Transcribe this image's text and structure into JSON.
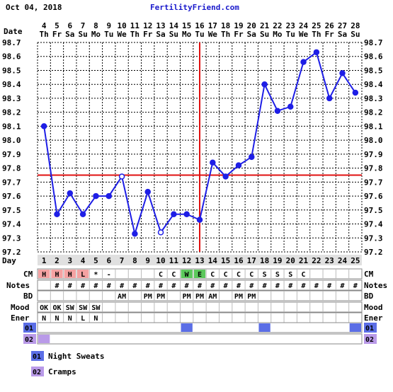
{
  "header": {
    "date": "Oct 04, 2018",
    "site": "FertilityFriend.com"
  },
  "chart_data": {
    "type": "line",
    "row_labels": {
      "date": "Date",
      "day": "Day",
      "cm": "CM",
      "notes": "Notes",
      "bd": "BD",
      "mood": "Mood",
      "energy": "Ener"
    },
    "dates": [
      "4",
      "5",
      "6",
      "7",
      "8",
      "9",
      "10",
      "11",
      "12",
      "13",
      "14",
      "15",
      "16",
      "17",
      "18",
      "19",
      "20",
      "21",
      "22",
      "23",
      "24",
      "25",
      "26",
      "27",
      "28"
    ],
    "weekdays": [
      "Th",
      "Fr",
      "Sa",
      "Su",
      "Mo",
      "Tu",
      "We",
      "Th",
      "Fr",
      "Sa",
      "Su",
      "Mo",
      "Tu",
      "We",
      "Th",
      "Fr",
      "Sa",
      "Su",
      "Mo",
      "Tu",
      "We",
      "Th",
      "Fr",
      "Sa",
      "Su"
    ],
    "days": [
      "1",
      "2",
      "3",
      "4",
      "5",
      "6",
      "7",
      "8",
      "9",
      "10",
      "11",
      "12",
      "13",
      "14",
      "15",
      "16",
      "17",
      "18",
      "19",
      "20",
      "21",
      "22",
      "23",
      "24",
      "25"
    ],
    "y_ticks": [
      "98.7",
      "98.6",
      "98.5",
      "98.4",
      "98.3",
      "98.2",
      "98.1",
      "98.0",
      "97.9",
      "97.8",
      "97.7",
      "97.6",
      "97.5",
      "97.4",
      "97.3",
      "97.2"
    ],
    "ylim": [
      97.2,
      98.7
    ],
    "temperatures": [
      98.1,
      97.47,
      97.62,
      97.47,
      97.6,
      97.6,
      97.74,
      97.33,
      97.63,
      97.34,
      97.47,
      97.47,
      97.43,
      97.84,
      97.74,
      97.82,
      97.88,
      98.4,
      98.21,
      98.24,
      98.56,
      98.63,
      98.3,
      98.48,
      98.34
    ],
    "open_points": [
      6,
      9
    ],
    "coverline": 97.75,
    "ovulation_day_index": 12,
    "cm": [
      "H",
      "H",
      "H",
      "L",
      "*",
      "-",
      "",
      "",
      "",
      "C",
      "C",
      "W",
      "E",
      "C",
      "C",
      "C",
      "C",
      "S",
      "S",
      "S",
      "C",
      "",
      "",
      "",
      ""
    ],
    "notes": [
      "",
      "#",
      "#",
      "#",
      "#",
      "#",
      "#",
      "#",
      "#",
      "#",
      "#",
      "#",
      "#",
      "#",
      "#",
      "#",
      "#",
      "#",
      "#",
      "#",
      "#",
      "#",
      "#",
      "#",
      "#"
    ],
    "bd": [
      "",
      "",
      "",
      "",
      "",
      "",
      "AM",
      "",
      "PM",
      "PM",
      "",
      "PM",
      "PM",
      "AM",
      "",
      "PM",
      "PM",
      "",
      "",
      "",
      "",
      "",
      "",
      "",
      ""
    ],
    "mood": [
      "OK",
      "OK",
      "SW",
      "SW",
      "SW",
      "",
      "",
      "",
      "",
      "",
      "",
      "",
      "",
      "",
      "",
      "",
      "",
      "",
      "",
      "",
      "",
      "",
      "",
      "",
      ""
    ],
    "energy": [
      "N",
      "N",
      "N",
      "L",
      "N",
      "",
      "",
      "",
      "",
      "",
      "",
      "",
      "",
      "",
      "",
      "",
      "",
      "",
      "",
      "",
      "",
      "",
      "",
      "",
      ""
    ],
    "symptoms": [
      {
        "code": "01",
        "name": "Night Sweats",
        "days": [
          11,
          17,
          24
        ]
      },
      {
        "code": "02",
        "name": "Cramps",
        "days": [
          0
        ]
      }
    ],
    "colors": {
      "line": "#1e1ee6",
      "coverline": "#e01010",
      "grid": "#000000",
      "cm_dry": "#f4a2a2",
      "cm_fertile": "#5cc85c",
      "symptom1": "#5b6ee6",
      "symptom2": "#b99ae8",
      "day_band": "#e0e0e0",
      "site_text": "#1a1acc"
    }
  }
}
